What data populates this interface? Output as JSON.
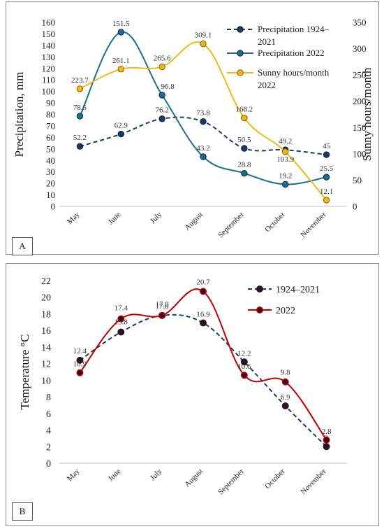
{
  "chart_data": [
    {
      "panel": "A",
      "type": "line",
      "categories": [
        "May",
        "June",
        "July",
        "August",
        "September",
        "October",
        "November"
      ],
      "ylabel": "Precipitation, mm",
      "y2label": "Sunny hours/month",
      "ylim": [
        0,
        160
      ],
      "y_ticks": [
        "0",
        "10",
        "20",
        "30",
        "40",
        "50",
        "60",
        "70",
        "80",
        "90",
        "100",
        "110",
        "120",
        "130",
        "140",
        "150",
        "160"
      ],
      "y2lim": [
        0,
        350
      ],
      "y2_ticks": [
        "0",
        "50",
        "100",
        "150",
        "200",
        "250",
        "300",
        "350"
      ],
      "legend_position": "top-right",
      "series": [
        {
          "name": "Precipitation 1924–2021",
          "axis": "left",
          "values": [
            52.2,
            62.9,
            76.2,
            73.8,
            50.5,
            49.2,
            45
          ],
          "labels": [
            "52.2",
            "62.9",
            "76.2",
            "73.8",
            "50.5",
            "49.2",
            "45"
          ],
          "color": "#1f3864",
          "dashed": true,
          "legend_lines": [
            "Precipitation 1924–",
            "2021"
          ]
        },
        {
          "name": "Precipitation 2022",
          "axis": "left",
          "values": [
            78.5,
            151.5,
            96.8,
            43.2,
            28.8,
            19.2,
            25.5
          ],
          "labels": [
            "78.5",
            "151.5",
            "96.8",
            "43.2",
            "28.8",
            "19.2",
            "25.5"
          ],
          "color": "#1a6e8e",
          "dashed": false,
          "legend_lines": [
            "Precipitation 2022"
          ]
        },
        {
          "name": "Sunny hours/month 2022",
          "axis": "right",
          "values": [
            223.7,
            261.1,
            265.6,
            309.1,
            168.2,
            103.9,
            12.1
          ],
          "labels": [
            "223.7",
            "261.1",
            "265.6",
            "309.1",
            "168.2",
            "103.9",
            "12.1"
          ],
          "color": "#f2b817",
          "dashed": false,
          "legend_lines": [
            "Sunny hours/month",
            "2022"
          ]
        }
      ]
    },
    {
      "panel": "B",
      "type": "line",
      "categories": [
        "May",
        "June",
        "July",
        "August",
        "September",
        "October",
        "November"
      ],
      "ylabel": "Temperature °C",
      "ylim": [
        0,
        22
      ],
      "y_ticks": [
        "0",
        "2",
        "4",
        "6",
        "8",
        "10",
        "12",
        "14",
        "16",
        "18",
        "20",
        "22"
      ],
      "legend_position": "top-right",
      "series": [
        {
          "name": "1924–2021",
          "values": [
            12.4,
            15.8,
            17.8,
            16.9,
            12.2,
            6.9,
            2
          ],
          "labels": [
            "12.4",
            "15.8",
            "17.8",
            "16.9",
            "12.2",
            "6.9",
            "2"
          ],
          "color": "#1f3864",
          "dashed": true
        },
        {
          "name": "2022",
          "values": [
            10.9,
            17.4,
            17.8,
            20.7,
            10.6,
            9.8,
            2.8
          ],
          "labels": [
            "10.9",
            "17.4",
            "17.8",
            "20.7",
            "10.6",
            "9.8",
            "2.8"
          ],
          "color": "#c00000",
          "dashed": false
        }
      ]
    }
  ]
}
